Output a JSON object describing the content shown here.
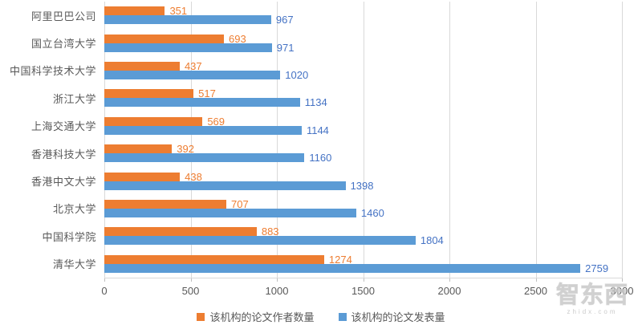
{
  "chart_data": {
    "type": "bar",
    "orientation": "horizontal",
    "title": "",
    "categories": [
      "阿里巴巴公司",
      "国立台湾大学",
      "中国科学技术大学",
      "浙江大学",
      "上海交通大学",
      "香港科技大学",
      "香港中文大学",
      "北京大学",
      "中国科学院",
      "清华大学"
    ],
    "series": [
      {
        "name": "该机构的论文作者数量",
        "color": "#ED7D31",
        "label_color": "#ED7D31",
        "values": [
          351,
          693,
          437,
          517,
          569,
          392,
          438,
          707,
          883,
          1274
        ]
      },
      {
        "name": "该机构的论文发表量",
        "color": "#5B9BD5",
        "label_color": "#4472C4",
        "values": [
          967,
          971,
          1020,
          1134,
          1144,
          1160,
          1398,
          1460,
          1804,
          2759
        ]
      }
    ],
    "x_ticks": [
      "0",
      "500",
      "1000",
      "1500",
      "2000",
      "2500",
      "3000"
    ],
    "xlim": [
      0,
      3000
    ],
    "grid": true,
    "legend_position": "bottom",
    "data_labels": true
  },
  "watermark": {
    "logo": "智东西",
    "url_text": "zhidx.com"
  }
}
